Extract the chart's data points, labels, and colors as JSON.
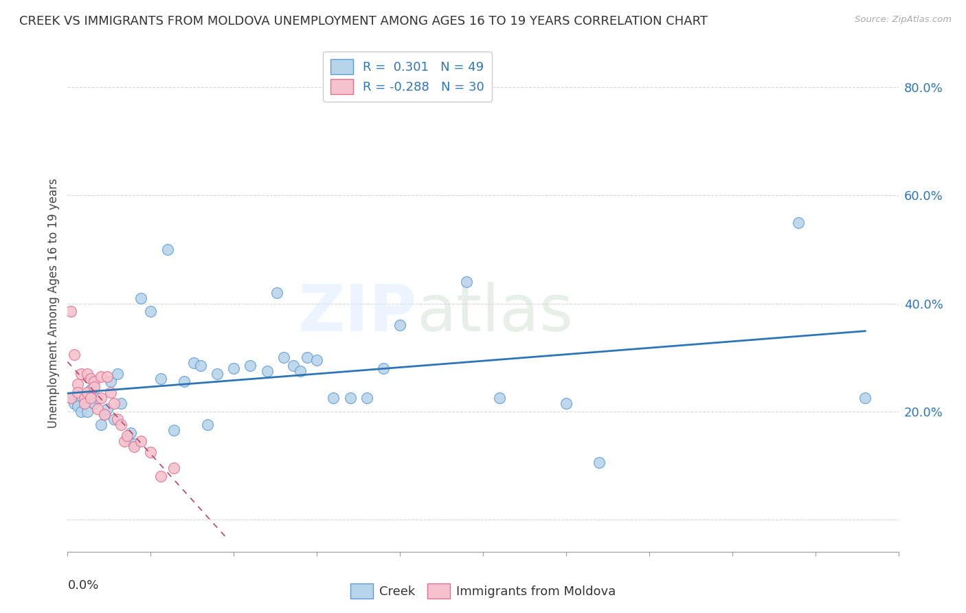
{
  "title": "CREEK VS IMMIGRANTS FROM MOLDOVA UNEMPLOYMENT AMONG AGES 16 TO 19 YEARS CORRELATION CHART",
  "source": "Source: ZipAtlas.com",
  "ylabel": "Unemployment Among Ages 16 to 19 years",
  "x_range": [
    0.0,
    0.25
  ],
  "y_range": [
    -0.06,
    0.86
  ],
  "creek_color": "#b8d4ea",
  "creek_edge_color": "#5b9bd5",
  "creek_line_color": "#2e75b6",
  "moldova_color": "#f5c2ce",
  "moldova_edge_color": "#e07090",
  "moldova_line_color": "#c04060",
  "creek_R": 0.301,
  "creek_N": 49,
  "moldova_R": -0.288,
  "moldova_N": 30,
  "legend_text_color": "#2e75b6",
  "creek_x": [
    0.001,
    0.002,
    0.003,
    0.004,
    0.005,
    0.006,
    0.007,
    0.008,
    0.009,
    0.01,
    0.011,
    0.012,
    0.013,
    0.014,
    0.015,
    0.016,
    0.018,
    0.019,
    0.02,
    0.022,
    0.025,
    0.028,
    0.03,
    0.032,
    0.035,
    0.038,
    0.04,
    0.042,
    0.045,
    0.05,
    0.055,
    0.06,
    0.063,
    0.065,
    0.068,
    0.07,
    0.072,
    0.075,
    0.08,
    0.085,
    0.09,
    0.095,
    0.1,
    0.12,
    0.13,
    0.15,
    0.16,
    0.22,
    0.24
  ],
  "creek_y": [
    0.225,
    0.215,
    0.21,
    0.2,
    0.215,
    0.2,
    0.24,
    0.215,
    0.225,
    0.175,
    0.195,
    0.205,
    0.255,
    0.185,
    0.27,
    0.215,
    0.15,
    0.16,
    0.14,
    0.41,
    0.385,
    0.26,
    0.5,
    0.165,
    0.255,
    0.29,
    0.285,
    0.175,
    0.27,
    0.28,
    0.285,
    0.275,
    0.42,
    0.3,
    0.285,
    0.275,
    0.3,
    0.295,
    0.225,
    0.225,
    0.225,
    0.28,
    0.36,
    0.44,
    0.225,
    0.215,
    0.105,
    0.55,
    0.225
  ],
  "moldova_x": [
    0.001,
    0.001,
    0.002,
    0.003,
    0.003,
    0.004,
    0.005,
    0.005,
    0.006,
    0.006,
    0.007,
    0.007,
    0.008,
    0.008,
    0.009,
    0.01,
    0.01,
    0.011,
    0.012,
    0.013,
    0.014,
    0.015,
    0.016,
    0.017,
    0.018,
    0.02,
    0.022,
    0.025,
    0.028,
    0.032
  ],
  "moldova_y": [
    0.385,
    0.225,
    0.305,
    0.25,
    0.235,
    0.27,
    0.225,
    0.215,
    0.235,
    0.27,
    0.225,
    0.26,
    0.255,
    0.245,
    0.205,
    0.225,
    0.265,
    0.195,
    0.265,
    0.235,
    0.215,
    0.185,
    0.175,
    0.145,
    0.155,
    0.135,
    0.145,
    0.125,
    0.08,
    0.095
  ],
  "background_color": "#ffffff",
  "grid_color": "#cccccc",
  "y_ticks": [
    0.0,
    0.2,
    0.4,
    0.6,
    0.8
  ],
  "y_tick_labels": [
    "",
    "20.0%",
    "40.0%",
    "60.0%",
    "80.0%"
  ],
  "x_ticks_minor": [
    0.025,
    0.05,
    0.075,
    0.1,
    0.125,
    0.15,
    0.175,
    0.2,
    0.225
  ],
  "scatter_size": 130
}
